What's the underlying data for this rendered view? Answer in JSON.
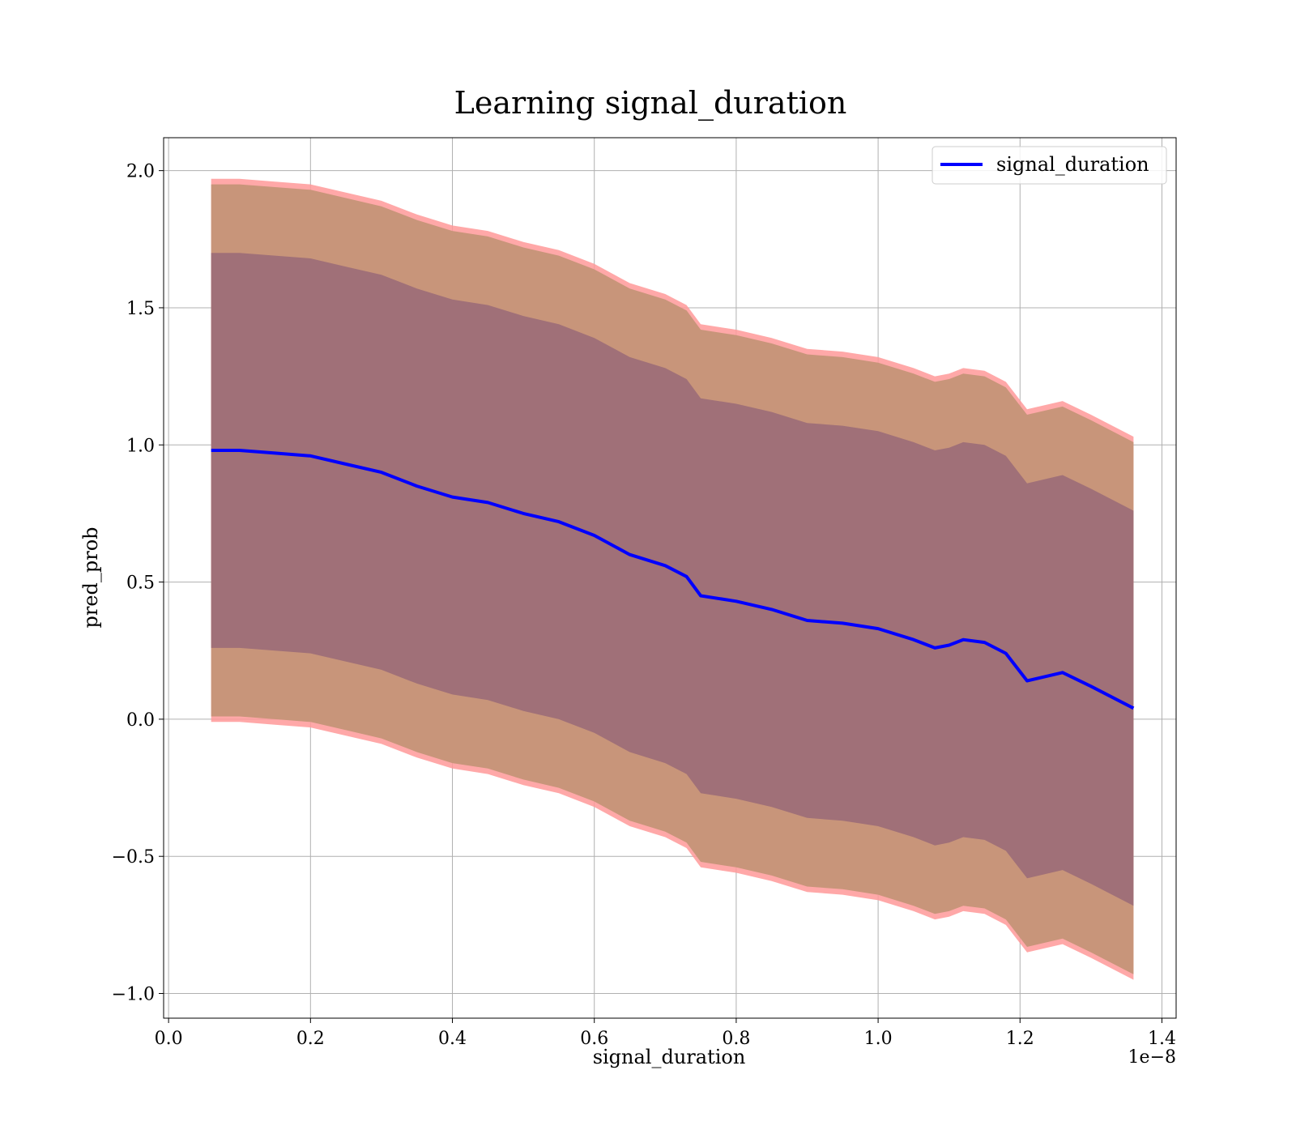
{
  "chart_data": {
    "type": "line",
    "title": "Learning signal_duration",
    "xlabel": "signal_duration",
    "ylabel": "pred_prob",
    "x_offset_label": "1e−8",
    "xlim": [
      -0.007,
      1.42
    ],
    "ylim": [
      -1.09,
      2.12
    ],
    "x_ticks": [
      0.0,
      0.2,
      0.4,
      0.6,
      0.8,
      1.0,
      1.2,
      1.4
    ],
    "x_tick_labels": [
      "0.0",
      "0.2",
      "0.4",
      "0.6",
      "0.8",
      "1.0",
      "1.2",
      "1.4"
    ],
    "y_ticks": [
      -1.0,
      -0.5,
      0.0,
      0.5,
      1.0,
      1.5,
      2.0
    ],
    "y_tick_labels": [
      "−1.0",
      "−0.5",
      "0.0",
      "0.5",
      "1.0",
      "1.5",
      "2.0"
    ],
    "grid": true,
    "legend_position": "top-right",
    "colors": {
      "line": "#0000ff",
      "outer_band": "#ff9999",
      "middle_band": "#c8957a",
      "inner_band": "#a07078",
      "grid": "#b0b0b0",
      "axes": "#000000"
    },
    "series": [
      {
        "name": "signal_duration",
        "x": [
          0.06,
          0.1,
          0.15,
          0.2,
          0.25,
          0.3,
          0.35,
          0.4,
          0.45,
          0.5,
          0.55,
          0.6,
          0.65,
          0.7,
          0.73,
          0.75,
          0.8,
          0.85,
          0.9,
          0.95,
          1.0,
          1.05,
          1.08,
          1.1,
          1.12,
          1.15,
          1.18,
          1.21,
          1.26,
          1.3,
          1.36
        ],
        "y": [
          0.98,
          0.98,
          0.97,
          0.96,
          0.93,
          0.9,
          0.85,
          0.81,
          0.79,
          0.75,
          0.72,
          0.67,
          0.6,
          0.56,
          0.52,
          0.45,
          0.43,
          0.4,
          0.36,
          0.35,
          0.33,
          0.29,
          0.26,
          0.27,
          0.29,
          0.28,
          0.24,
          0.14,
          0.17,
          0.12,
          0.04
        ],
        "band_inner_offset": 0.72,
        "band_middle_offset": 0.97,
        "band_outer_offset": 0.99
      }
    ]
  }
}
